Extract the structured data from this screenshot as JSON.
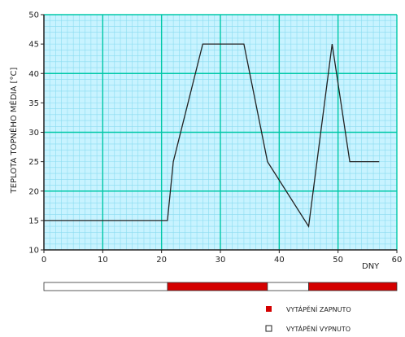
{
  "chart_data": {
    "type": "line",
    "title": "",
    "xlabel": "DNY",
    "ylabel": "TEPLOTA TOPNÉHO MÉDIA  [°C]",
    "xlim": [
      0,
      60
    ],
    "ylim": [
      10,
      50
    ],
    "xticks": [
      0,
      10,
      20,
      30,
      40,
      50,
      60
    ],
    "yticks": [
      10,
      15,
      20,
      25,
      30,
      35,
      40,
      45,
      50
    ],
    "grid": true,
    "x": [
      0,
      21,
      22,
      27,
      34,
      38,
      45,
      49,
      52,
      57
    ],
    "y": [
      15,
      15,
      25,
      45,
      45,
      25,
      14,
      45,
      25,
      25
    ],
    "heating_segments": [
      {
        "from": 0,
        "to": 21,
        "on": false
      },
      {
        "from": 21,
        "to": 38,
        "on": true
      },
      {
        "from": 38,
        "to": 45,
        "on": false
      },
      {
        "from": 45,
        "to": 60,
        "on": true
      }
    ],
    "legend": [
      {
        "label": "VYTÁPĚNÍ ZAPNUTO",
        "color": "#d40000",
        "filled": true
      },
      {
        "label": "VYTÁPĚNÍ VYPNUTO",
        "color": "#ffffff",
        "filled": false
      }
    ],
    "colors": {
      "background": "#c8f3ff",
      "minor_grid": "#8adcf0",
      "major_grid": "#00c8a8",
      "line": "#222222",
      "on": "#d40000"
    }
  }
}
